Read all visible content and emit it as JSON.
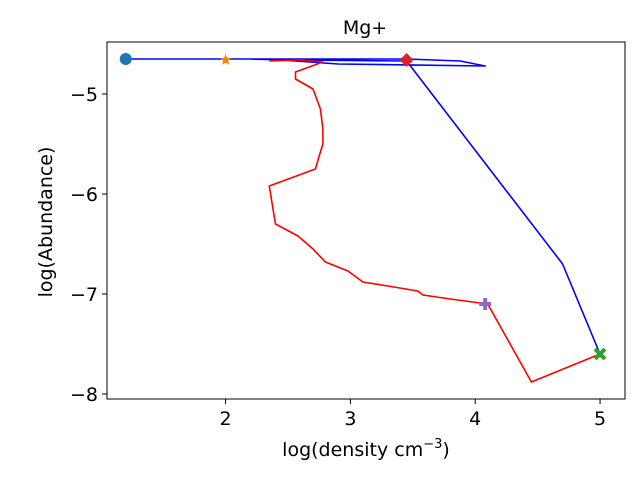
{
  "chart_data": {
    "type": "line",
    "title": "Mg+",
    "xlabel": "log(density cm",
    "xlabel_superscript": "−3",
    "xlabel_suffix": ")",
    "ylabel": "log(Abundance)",
    "xlim": [
      1.05,
      5.2
    ],
    "ylim": [
      -8.05,
      -4.48
    ],
    "x_ticks": [
      2,
      3,
      4,
      5
    ],
    "x_tick_labels": [
      "2",
      "3",
      "4",
      "5"
    ],
    "y_ticks": [
      -5,
      -6,
      -7,
      -8
    ],
    "y_tick_labels": [
      "−5",
      "−6",
      "−7",
      "−8"
    ],
    "grid": false,
    "series": [
      {
        "color": "#0000ff",
        "x": [
          1.2,
          2.0,
          3.45,
          3.88,
          4.08,
          2.9,
          2.45,
          2.2,
          2.6,
          3.45,
          4.7,
          5.0
        ],
        "y": [
          -4.65,
          -4.65,
          -4.65,
          -4.67,
          -4.72,
          -4.7,
          -4.66,
          -4.65,
          -4.66,
          -4.67,
          -6.7,
          -7.6
        ]
      },
      {
        "color": "#ff0000",
        "x": [
          2.35,
          2.6,
          2.78,
          2.56,
          2.56,
          2.7,
          2.76,
          2.78,
          2.78,
          2.75,
          2.72,
          2.35,
          2.38,
          2.4,
          2.58,
          2.7,
          2.8,
          2.98,
          3.1,
          3.3,
          3.54,
          3.58,
          3.8,
          4.1,
          4.45,
          5.0
        ],
        "y": [
          -4.67,
          -4.66,
          -4.68,
          -4.78,
          -4.85,
          -4.95,
          -5.15,
          -5.35,
          -5.5,
          -5.62,
          -5.75,
          -5.92,
          -6.15,
          -6.3,
          -6.42,
          -6.55,
          -6.68,
          -6.77,
          -6.88,
          -6.92,
          -6.97,
          -7.01,
          -7.05,
          -7.1,
          -7.88,
          -7.6
        ]
      }
    ],
    "markers": [
      {
        "symbol": "circle",
        "color": "#1f77b4",
        "x": 1.2,
        "y": -4.65
      },
      {
        "symbol": "star",
        "color": "#ff7f0e",
        "x": 2.0,
        "y": -4.66
      },
      {
        "symbol": "diamond",
        "color": "#d62728",
        "x": 3.45,
        "y": -4.66
      },
      {
        "symbol": "plus",
        "color": "#9467bd",
        "x": 4.08,
        "y": -7.1
      },
      {
        "symbol": "x",
        "color": "#2ca02c",
        "x": 5.0,
        "y": -7.6
      }
    ]
  }
}
